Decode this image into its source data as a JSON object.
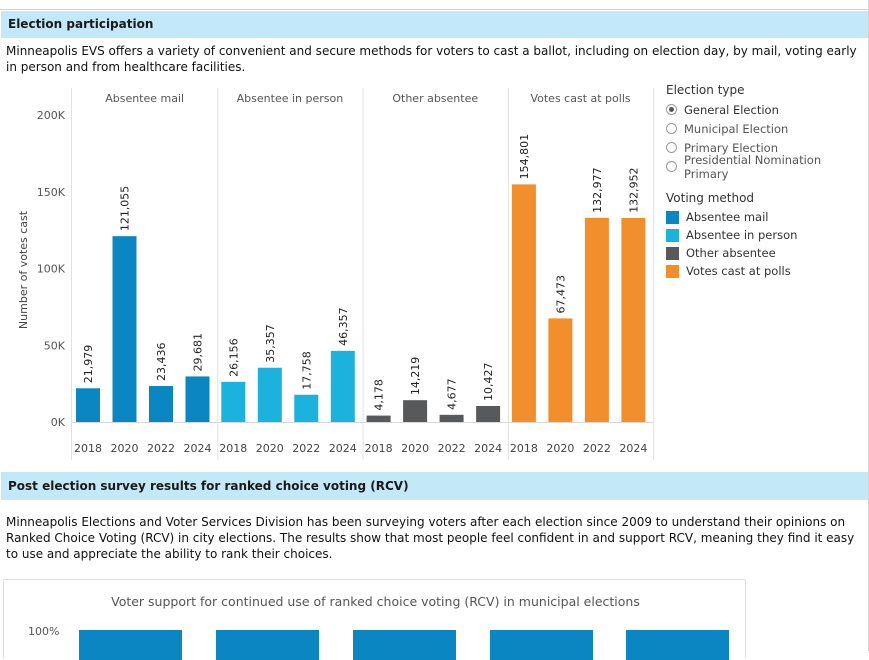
{
  "sections": {
    "participation": {
      "title": "Election participation",
      "description": "Minneapolis EVS offers a variety of convenient and secure methods for voters to cast a ballot, including on election day, by mail, voting early in person and from healthcare facilities."
    },
    "rcv": {
      "title": "Post election survey results for ranked choice voting (RCV)",
      "description": "Minneapolis Elections and Voter Services Division has been surveying voters after each election since 2009 to understand their opinions on Ranked Choice Voting (RCV) in city elections. The results show that most people feel confident in and support RCV, meaning they find it easy to use and appreciate the ability to rank their choices."
    }
  },
  "legend": {
    "election_type_title": "Election type",
    "election_types": [
      {
        "label": "General Election",
        "selected": true
      },
      {
        "label": "Municipal Election",
        "selected": false
      },
      {
        "label": "Primary Election",
        "selected": false
      },
      {
        "label": "Presidential Nomination Primary",
        "selected": false
      }
    ],
    "voting_method_title": "Voting method",
    "voting_methods": [
      {
        "label": "Absentee mail",
        "color": "#0a86c3"
      },
      {
        "label": "Absentee in person",
        "color": "#1cb2de"
      },
      {
        "label": "Other absentee",
        "color": "#58595b"
      },
      {
        "label": "Votes cast at polls",
        "color": "#f28e2b"
      }
    ]
  },
  "chart_data": [
    {
      "type": "bar",
      "title": "",
      "xlabel": "",
      "ylabel": "Number of votes cast",
      "ylim": [
        0,
        200000
      ],
      "yticks": [
        0,
        50000,
        100000,
        150000,
        200000
      ],
      "ytick_labels": [
        "0K",
        "50K",
        "100K",
        "150K",
        "200K"
      ],
      "categories": [
        "2018",
        "2020",
        "2022",
        "2024"
      ],
      "series": [
        {
          "name": "Absentee mail",
          "color": "#0a86c3",
          "values": [
            21979,
            121055,
            23436,
            29681
          ],
          "labels": [
            "21,979",
            "121,055",
            "23,436",
            "29,681"
          ]
        },
        {
          "name": "Absentee in person",
          "color": "#1cb2de",
          "values": [
            26156,
            35357,
            17758,
            46357
          ],
          "labels": [
            "26,156",
            "35,357",
            "17,758",
            "46,357"
          ]
        },
        {
          "name": "Other absentee",
          "color": "#58595b",
          "values": [
            4178,
            14219,
            4677,
            10427
          ],
          "labels": [
            "4,178",
            "14,219",
            "4,677",
            "10,427"
          ]
        },
        {
          "name": "Votes cast at polls",
          "color": "#f28e2b",
          "values": [
            154801,
            67473,
            132977,
            132952
          ],
          "labels": [
            "154,801",
            "67,473",
            "132,977",
            "132,952"
          ]
        }
      ]
    },
    {
      "type": "bar",
      "title": "Voter support for continued use of ranked choice voting (RCV) in municipal elections",
      "ytick_labels": [
        "100%"
      ],
      "values": [
        100,
        100,
        100,
        100,
        100
      ],
      "color": "#0a86c3"
    }
  ]
}
